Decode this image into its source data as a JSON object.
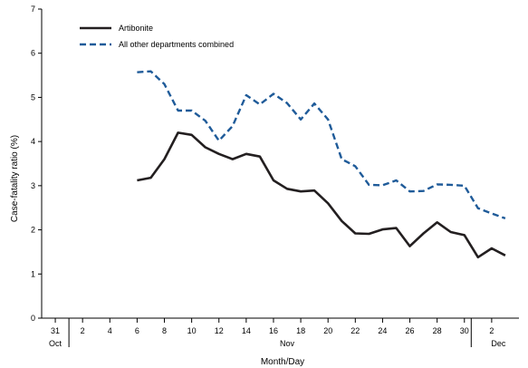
{
  "chart_data": {
    "type": "line",
    "xlabel": "Month/Day",
    "ylabel": "Case-fatality ratio (%)",
    "ylim": [
      0,
      7
    ],
    "yticks": [
      0,
      1,
      2,
      3,
      4,
      5,
      6,
      7
    ],
    "xticks": [
      {
        "day": 31,
        "label": "31"
      },
      {
        "day": 33,
        "label": "2"
      },
      {
        "day": 35,
        "label": "4"
      },
      {
        "day": 37,
        "label": "6"
      },
      {
        "day": 39,
        "label": "8"
      },
      {
        "day": 41,
        "label": "10"
      },
      {
        "day": 43,
        "label": "12"
      },
      {
        "day": 45,
        "label": "14"
      },
      {
        "day": 47,
        "label": "16"
      },
      {
        "day": 49,
        "label": "18"
      },
      {
        "day": 51,
        "label": "20"
      },
      {
        "day": 53,
        "label": "22"
      },
      {
        "day": 55,
        "label": "24"
      },
      {
        "day": 57,
        "label": "26"
      },
      {
        "day": 59,
        "label": "28"
      },
      {
        "day": 61,
        "label": "30"
      },
      {
        "day": 63,
        "label": "2"
      }
    ],
    "month_labels": [
      {
        "day": 31,
        "label": "Oct"
      },
      {
        "day": 48,
        "label": "Nov"
      },
      {
        "day": 63.5,
        "label": "Dec"
      }
    ],
    "month_separators": [
      32,
      61.5
    ],
    "legend": {
      "position": "top-left"
    },
    "series": [
      {
        "name": "Artibonite",
        "style": "solid",
        "color": "#231f20",
        "x": [
          37,
          38,
          39,
          40,
          41,
          42,
          43,
          44,
          45,
          46,
          47,
          48,
          49,
          50,
          51,
          52,
          53,
          54,
          55,
          56,
          57,
          58,
          59,
          60,
          61,
          62,
          63,
          64
        ],
        "values": [
          3.12,
          3.18,
          3.6,
          4.2,
          4.15,
          3.87,
          3.72,
          3.6,
          3.72,
          3.66,
          3.12,
          2.93,
          2.87,
          2.89,
          2.6,
          2.2,
          1.92,
          1.91,
          2.01,
          2.04,
          1.63,
          1.92,
          2.17,
          1.95,
          1.88,
          1.38,
          1.58,
          1.42
        ]
      },
      {
        "name": "All other departments combined",
        "style": "dashed",
        "color": "#1f5b99",
        "x": [
          37,
          38,
          39,
          40,
          41,
          42,
          43,
          44,
          45,
          46,
          47,
          48,
          49,
          50,
          51,
          52,
          53,
          54,
          55,
          56,
          57,
          58,
          59,
          60,
          61,
          62,
          63,
          64
        ],
        "values": [
          5.57,
          5.59,
          5.3,
          4.7,
          4.7,
          4.47,
          4.02,
          4.35,
          5.05,
          4.84,
          5.08,
          4.87,
          4.5,
          4.86,
          4.5,
          3.6,
          3.44,
          3.02,
          3.01,
          3.12,
          2.87,
          2.88,
          3.03,
          3.02,
          3.0,
          2.49,
          2.37,
          2.26
        ]
      }
    ]
  }
}
